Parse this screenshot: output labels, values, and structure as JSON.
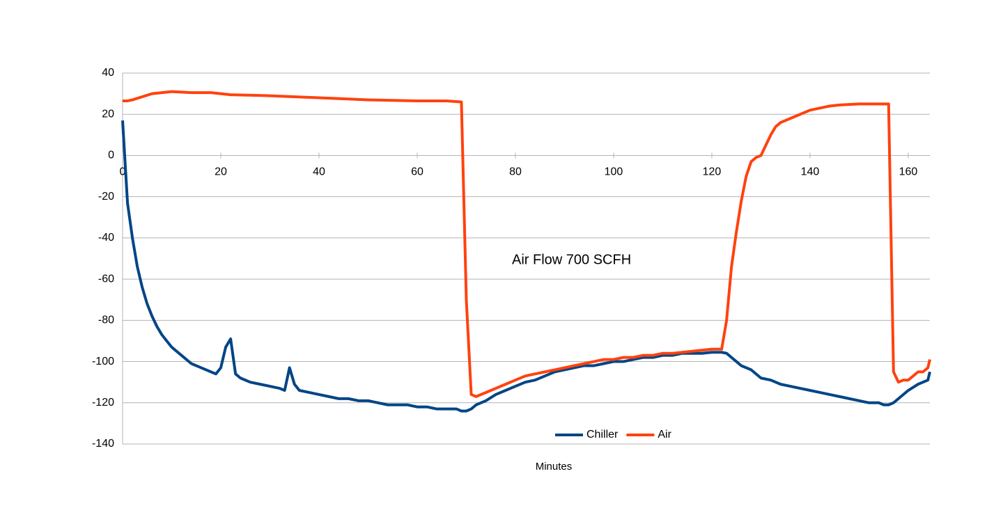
{
  "chart_data": {
    "type": "line",
    "annotation": "Air Flow 700 SCFH",
    "x_label": "Minutes",
    "xlim": [
      0,
      164.4
    ],
    "xticks": [
      0,
      20,
      40,
      60,
      80,
      100,
      120,
      140,
      160
    ],
    "ylim": [
      -140,
      40
    ],
    "yticks": [
      40,
      20,
      0,
      -20,
      -40,
      -60,
      -80,
      -100,
      -120,
      -140
    ],
    "grid": true,
    "legend": "bottom",
    "series": [
      {
        "name": "Chiller",
        "color": "#004586",
        "x": [
          0,
          1,
          2,
          3,
          4,
          5,
          6,
          7,
          8,
          9,
          10,
          12,
          14,
          16,
          18,
          19,
          20,
          21,
          22,
          23,
          24,
          26,
          28,
          30,
          32,
          33,
          34,
          35,
          36,
          38,
          40,
          42,
          44,
          46,
          48,
          50,
          52,
          54,
          56,
          58,
          60,
          62,
          64,
          66,
          68,
          69,
          70,
          71,
          72,
          74,
          76,
          78,
          80,
          82,
          84,
          86,
          88,
          90,
          92,
          94,
          96,
          98,
          100,
          102,
          104,
          106,
          108,
          110,
          112,
          114,
          116,
          118,
          120,
          122,
          123,
          124,
          125,
          126,
          128,
          130,
          132,
          134,
          136,
          138,
          140,
          142,
          144,
          146,
          148,
          150,
          152,
          154,
          155,
          156,
          157,
          158,
          160,
          162,
          164,
          164.4
        ],
        "values": [
          17,
          -23,
          -40,
          -54,
          -64,
          -72,
          -78,
          -83,
          -87,
          -90,
          -93,
          -97,
          -101,
          -103,
          -105,
          -106,
          -103,
          -93,
          -89,
          -106,
          -108,
          -110,
          -111,
          -112,
          -113,
          -114,
          -103,
          -111,
          -114,
          -115,
          -116,
          -117,
          -118,
          -118,
          -119,
          -119,
          -120,
          -121,
          -121,
          -121,
          -122,
          -122,
          -123,
          -123,
          -123,
          -124,
          -124,
          -123,
          -121,
          -119,
          -116,
          -114,
          -112,
          -110,
          -109,
          -107,
          -105,
          -104,
          -103,
          -102,
          -102,
          -101,
          -100,
          -100,
          -99,
          -98,
          -98,
          -97,
          -97,
          -96,
          -96,
          -96,
          -95.5,
          -95.5,
          -96,
          -98,
          -100,
          -102,
          -104,
          -108,
          -109,
          -111,
          -112,
          -113,
          -114,
          -115,
          -116,
          -117,
          -118,
          -119,
          -120,
          -120,
          -121,
          -121,
          -120,
          -118,
          -114,
          -111,
          -109,
          -105
        ]
      },
      {
        "name": "Air",
        "color": "#ff420e",
        "x": [
          0,
          1,
          2,
          4,
          6,
          8,
          10,
          14,
          18,
          22,
          30,
          40,
          50,
          60,
          66,
          69,
          70,
          71,
          72,
          74,
          76,
          78,
          80,
          82,
          84,
          86,
          88,
          90,
          92,
          94,
          96,
          98,
          100,
          102,
          104,
          106,
          108,
          110,
          112,
          114,
          116,
          118,
          120,
          122,
          123,
          124,
          125,
          126,
          127,
          128,
          129,
          130,
          131,
          132,
          133,
          134,
          136,
          138,
          140,
          142,
          144,
          146,
          150,
          154,
          156,
          157,
          158,
          159,
          160,
          161,
          162,
          163,
          164,
          164.4
        ],
        "values": [
          26.5,
          26.5,
          27,
          28.5,
          30,
          30.5,
          31,
          30.5,
          30.5,
          29.5,
          29,
          28,
          27,
          26.5,
          26.5,
          26,
          -70,
          -116,
          -117,
          -115,
          -113,
          -111,
          -109,
          -107,
          -106,
          -105,
          -104,
          -103,
          -102,
          -101,
          -100,
          -99,
          -99,
          -98,
          -98,
          -97,
          -97,
          -96,
          -96,
          -95.5,
          -95,
          -94.5,
          -94,
          -94,
          -80,
          -54,
          -37,
          -22,
          -10,
          -3,
          -1,
          0,
          5,
          10,
          14,
          16,
          18,
          20,
          22,
          23,
          24,
          24.5,
          25,
          25,
          25,
          -105,
          -110,
          -109,
          -109,
          -107,
          -105,
          -105,
          -103,
          -99
        ]
      }
    ]
  }
}
